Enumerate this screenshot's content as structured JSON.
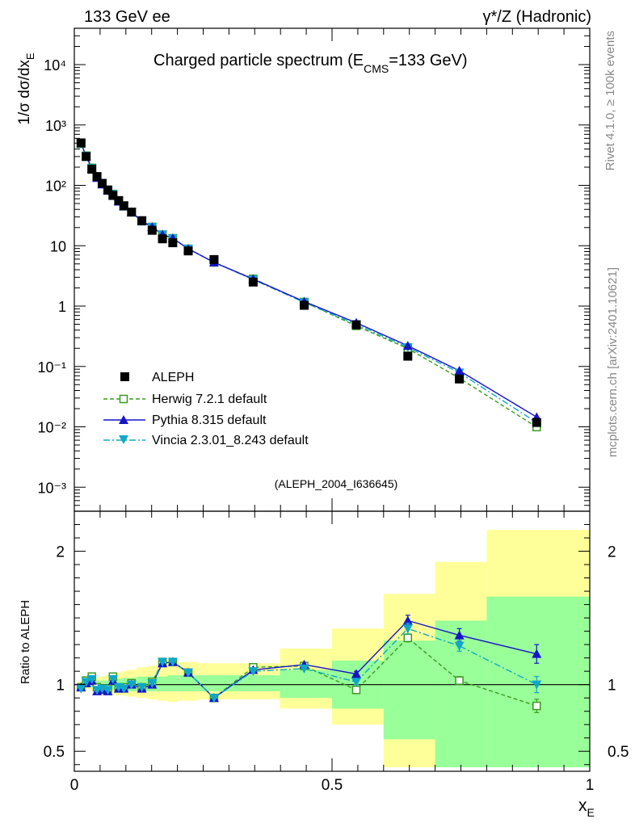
{
  "header": {
    "left": "133 GeV ee",
    "right": "γ*/Z (Hadronic)"
  },
  "side_labels": {
    "top": "Rivet 4.1.0, ≥ 100k events",
    "bottom": "mcplots.cern.ch [arXiv:2401.10621]"
  },
  "chart_data": [
    {
      "type": "line",
      "panel": "main",
      "yscale": "log",
      "title": "Charged particle spectrum (E",
      "title_sub": "CMS",
      "title_end": "=133 GeV)",
      "xlabel": "",
      "ylabel": "1/σ  dσ/dx",
      "ylabel_sub": "E",
      "xlim": [
        0,
        1
      ],
      "ylim": [
        0.0004,
        40000
      ],
      "ytick_labels": [
        "10⁻³",
        "10⁻²",
        "10⁻¹",
        "1",
        "10",
        "10²",
        "10³",
        "10⁴"
      ],
      "annotation": "(ALEPH_2004_I636645)",
      "legend_position": "lower-left",
      "x": [
        0.013,
        0.023,
        0.034,
        0.044,
        0.054,
        0.065,
        0.075,
        0.086,
        0.096,
        0.111,
        0.131,
        0.151,
        0.171,
        0.191,
        0.221,
        0.271,
        0.347,
        0.446,
        0.547,
        0.647,
        0.747,
        0.897
      ],
      "series": [
        {
          "name": "ALEPH",
          "color": "#000000",
          "values": [
            505,
            300,
            185,
            140,
            108,
            84,
            68,
            56,
            46,
            36,
            26,
            18,
            13.0,
            11.2,
            8.2,
            5.9,
            2.5,
            1.03,
            0.49,
            0.148,
            0.062,
            0.0118
          ]
        },
        {
          "name": "Herwig 7.2.1 default",
          "color": "#3a9a20",
          "values": [
            490,
            310,
            195,
            135,
            106,
            82,
            72,
            55,
            45,
            36,
            25.5,
            20.5,
            15.3,
            13.3,
            8.9,
            5.3,
            2.84,
            1.17,
            0.47,
            0.198,
            0.064,
            0.0099
          ]
        },
        {
          "name": "Pythia 8.315 default",
          "color": "#1515c8",
          "values": [
            495,
            305,
            190,
            133,
            104,
            82,
            70,
            54,
            45,
            36,
            25.5,
            20.5,
            15.3,
            13.3,
            8.9,
            5.3,
            2.8,
            1.19,
            0.53,
            0.22,
            0.085,
            0.0145
          ]
        },
        {
          "name": "Vincia 2.3.01_8.243 default",
          "color": "#10a8c8",
          "values": [
            492,
            307,
            192,
            135,
            105,
            82,
            71,
            55,
            45,
            36,
            25.5,
            20.5,
            15.3,
            13.3,
            8.9,
            5.3,
            2.75,
            1.15,
            0.5,
            0.208,
            0.079,
            0.0118
          ]
        }
      ]
    },
    {
      "type": "line",
      "panel": "ratio",
      "xlabel": "x",
      "xlabel_sub": "E",
      "ylabel": "Ratio to ALEPH",
      "xlim": [
        0,
        1
      ],
      "ylim": [
        0.35,
        2.3
      ],
      "xtick_labels": [
        "0",
        "0.5",
        "1"
      ],
      "ytick_labels": [
        "0.5",
        "1",
        "2"
      ],
      "bands": {
        "edges": [
          0.008,
          0.018,
          0.028,
          0.039,
          0.049,
          0.059,
          0.07,
          0.08,
          0.091,
          0.101,
          0.121,
          0.141,
          0.161,
          0.181,
          0.201,
          0.241,
          0.301,
          0.399,
          0.5,
          0.6,
          0.7,
          0.8,
          1.0
        ],
        "outer_low": [
          0.98,
          0.97,
          0.96,
          0.95,
          0.95,
          0.94,
          0.93,
          0.92,
          0.92,
          0.91,
          0.9,
          0.89,
          0.88,
          0.87,
          0.88,
          0.89,
          0.89,
          0.82,
          0.7,
          0.38,
          0.38,
          0.38
        ],
        "outer_high": [
          1.02,
          1.03,
          1.04,
          1.05,
          1.06,
          1.07,
          1.08,
          1.09,
          1.1,
          1.11,
          1.13,
          1.14,
          1.15,
          1.16,
          1.17,
          1.16,
          1.16,
          1.27,
          1.42,
          1.68,
          1.92,
          2.16
        ],
        "inner_low": [
          0.99,
          0.98,
          0.98,
          0.97,
          0.97,
          0.97,
          0.96,
          0.96,
          0.96,
          0.95,
          0.95,
          0.95,
          0.95,
          0.95,
          0.95,
          0.95,
          0.95,
          0.9,
          0.82,
          0.59,
          0.38,
          0.38
        ],
        "inner_high": [
          1.01,
          1.02,
          1.02,
          1.03,
          1.03,
          1.03,
          1.04,
          1.04,
          1.05,
          1.05,
          1.06,
          1.06,
          1.06,
          1.07,
          1.07,
          1.07,
          1.07,
          1.11,
          1.18,
          1.33,
          1.48,
          1.66
        ],
        "outer_color": "#ffff99",
        "inner_color": "#99ff99"
      },
      "x": [
        0.013,
        0.023,
        0.034,
        0.044,
        0.054,
        0.065,
        0.075,
        0.086,
        0.096,
        0.111,
        0.131,
        0.151,
        0.171,
        0.191,
        0.221,
        0.271,
        0.347,
        0.446,
        0.547,
        0.647,
        0.747,
        0.897
      ],
      "series": [
        {
          "name": "Herwig 7.2.1 default",
          "color": "#3a9a20",
          "values": [
            0.98,
            1.03,
            1.06,
            0.98,
            0.97,
            0.97,
            1.06,
            0.98,
            0.98,
            1.01,
            0.98,
            1.02,
            1.17,
            1.17,
            1.09,
            0.9,
            1.13,
            1.14,
            0.96,
            1.35,
            1.03,
            0.84
          ],
          "errors": [
            0,
            0,
            0,
            0,
            0,
            0,
            0,
            0,
            0,
            0,
            0,
            0,
            0,
            0,
            0,
            0,
            0,
            0,
            0.02,
            0.03,
            0.03,
            0.05
          ]
        },
        {
          "name": "Pythia 8.315 default",
          "color": "#1515c8",
          "values": [
            0.98,
            1.01,
            1.03,
            0.95,
            0.96,
            0.95,
            1.03,
            0.97,
            0.97,
            1.0,
            0.97,
            1.0,
            1.16,
            1.17,
            1.09,
            0.9,
            1.11,
            1.15,
            1.08,
            1.48,
            1.37,
            1.23
          ],
          "errors": [
            0,
            0,
            0,
            0,
            0,
            0,
            0,
            0,
            0,
            0,
            0,
            0,
            0,
            0,
            0,
            0,
            0,
            0,
            0.02,
            0.04,
            0.05,
            0.07
          ]
        },
        {
          "name": "Vincia 2.3.01_8.243 default",
          "color": "#10a8c8",
          "values": [
            0.97,
            1.02,
            1.04,
            0.96,
            0.97,
            0.96,
            1.04,
            0.98,
            0.97,
            1.0,
            0.98,
            1.01,
            1.17,
            1.17,
            1.09,
            0.9,
            1.1,
            1.12,
            1.02,
            1.42,
            1.29,
            1.0
          ],
          "errors": [
            0,
            0,
            0,
            0,
            0,
            0,
            0,
            0,
            0,
            0,
            0,
            0,
            0,
            0,
            0,
            0,
            0,
            0,
            0.02,
            0.04,
            0.04,
            0.06
          ]
        }
      ]
    }
  ]
}
